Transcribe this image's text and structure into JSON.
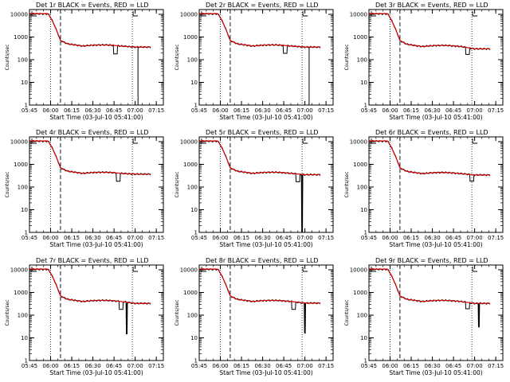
{
  "colors": {
    "events": "#000000",
    "lld": "#d40000",
    "background": "#ffffff"
  },
  "chart_data": {
    "type": "line",
    "layout": "3x3 grid",
    "common": {
      "ylabel": "Counts/sec",
      "xlabel": "Start Time (03-Jul-10 05:41:00)",
      "ylim": [
        1,
        10000
      ],
      "yscale": "log",
      "yticks": [
        "1",
        "10",
        "100",
        "1000",
        "10000"
      ],
      "xlim": [
        345,
        440
      ],
      "xticks": [
        "05:45",
        "06:00",
        "06:15",
        "06:30",
        "06:45",
        "07:00",
        "07:15"
      ],
      "dotted_lines_at": [
        "06:00",
        "06:58"
      ],
      "dashed_line_at": "06:07",
      "legend": "BLACK = Events, RED = LLD"
    },
    "panels": [
      {
        "title": "Det 1r BLACK = Events, RED = LLD",
        "high": 10500,
        "plateau": 400,
        "tail": 360,
        "drop_x": 406,
        "drop_val": 180,
        "spike_x": 422,
        "spike_val": 0
      },
      {
        "title": "Det 2r BLACK = Events, RED = LLD",
        "high": 10500,
        "plateau": 400,
        "tail": 360,
        "drop_x": 406,
        "drop_val": 190,
        "spike_x": 423,
        "spike_val": 0
      },
      {
        "title": "Det 3r BLACK = Events, RED = LLD",
        "high": 10500,
        "plateau": 380,
        "tail": 300,
        "drop_x": 415,
        "drop_val": 170,
        "spike_x": 0,
        "spike_val": 0
      },
      {
        "title": "Det 4r BLACK = Events, RED = LLD",
        "high": 10500,
        "plateau": 400,
        "tail": 370,
        "drop_x": 408,
        "drop_val": 180,
        "spike_x": 0,
        "spike_val": 0
      },
      {
        "title": "Det 5r BLACK = Events, RED = LLD",
        "high": 10500,
        "plateau": 400,
        "tail": 350,
        "drop_x": 415,
        "drop_val": 170,
        "spike_x": 418,
        "spike_val": 1
      },
      {
        "title": "Det 6r BLACK = Events, RED = LLD",
        "high": 10500,
        "plateau": 390,
        "tail": 340,
        "drop_x": 418,
        "drop_val": 180,
        "spike_x": 0,
        "spike_val": 0
      },
      {
        "title": "Det 7r BLACK = Events, RED = LLD",
        "high": 10500,
        "plateau": 400,
        "tail": 330,
        "drop_x": 410,
        "drop_val": 180,
        "spike_x": 414,
        "spike_val": 15
      },
      {
        "title": "Det 8r BLACK = Events, RED = LLD",
        "high": 10500,
        "plateau": 400,
        "tail": 340,
        "drop_x": 412,
        "drop_val": 180,
        "spike_x": 420,
        "spike_val": 16
      },
      {
        "title": "Det 9r BLACK = Events, RED = LLD",
        "high": 10500,
        "plateau": 400,
        "tail": 330,
        "drop_x": 415,
        "drop_val": 190,
        "spike_x": 423,
        "spike_val": 30
      }
    ]
  }
}
